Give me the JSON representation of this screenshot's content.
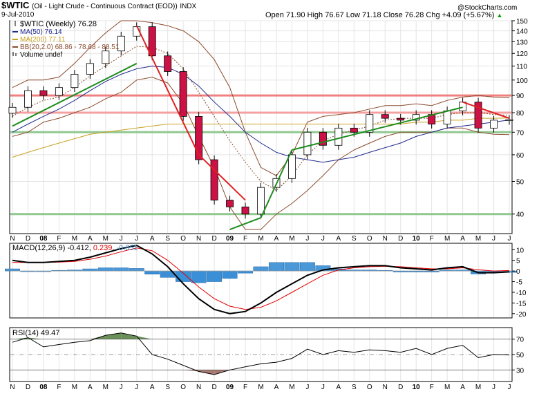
{
  "header": {
    "symbol": "$WTIC",
    "description": "(Oil - Light Crude - Continuous Contract (EOD))",
    "exchange": "INDX",
    "date": "9-Jul-2010",
    "watermark": "@StockCharts.com",
    "quote": "Open 71.90  High 76.67  Low 71.18  Close 76.28  Chg +4.09 (+5.67%)",
    "up_symbol": "▲"
  },
  "price_panel": {
    "legend": [
      {
        "text": "$WTIC (Weekly) 76.28",
        "color": "#000000",
        "swatch": "ohlc"
      },
      {
        "text": "MA(50) 76.14",
        "color": "#1f2a8c",
        "swatch": "line"
      },
      {
        "text": "MA(200) 77.11",
        "color": "#c8a020",
        "swatch": "line"
      },
      {
        "text": "BB(20,2.0) 68.86 - 78.68 - 88.51",
        "color": "#8b4a2b",
        "swatch": "line"
      },
      {
        "text": "Volume undef",
        "color": "#000000",
        "swatch": "bars"
      }
    ],
    "y_ticks": [
      40,
      50,
      60,
      70,
      80,
      90,
      100,
      110,
      120,
      130,
      140,
      150
    ],
    "scale": "log"
  },
  "macd_panel": {
    "label": "MACD(12,26,9)",
    "macd_value": "-0.412",
    "signal_value": "0.239",
    "hist_value": "-0.651",
    "y_ticks": [
      10,
      5,
      0,
      -5,
      -10,
      -15,
      -20
    ],
    "colors": {
      "macd": "#000000",
      "signal": "#e00000",
      "hist": "#3a8fd6"
    }
  },
  "rsi_panel": {
    "label": "RSI(14) 49.47",
    "y_ticks": [
      70,
      50,
      30
    ],
    "thresholds": [
      70,
      30
    ]
  },
  "x_axis": {
    "labels": [
      "N",
      "D",
      "08",
      "F",
      "M",
      "A",
      "M",
      "J",
      "J",
      "A",
      "S",
      "O",
      "N",
      "D",
      "09",
      "F",
      "M",
      "A",
      "M",
      "J",
      "J",
      "A",
      "S",
      "O",
      "N",
      "D",
      "10",
      "F",
      "M",
      "A",
      "M",
      "J",
      "J"
    ],
    "bold_labels": [
      "08",
      "09",
      "10"
    ]
  },
  "chart_data": [
    {
      "type": "ohlc",
      "title": "$WTIC (Weekly)",
      "period": "Weekly",
      "scale": "log",
      "ylim": [
        35,
        150
      ],
      "x_months": [
        "2007-11",
        "2007-12",
        "2008-01",
        "2008-02",
        "2008-03",
        "2008-04",
        "2008-05",
        "2008-06",
        "2008-07",
        "2008-08",
        "2008-09",
        "2008-10",
        "2008-11",
        "2008-12",
        "2009-01",
        "2009-02",
        "2009-03",
        "2009-04",
        "2009-05",
        "2009-06",
        "2009-07",
        "2009-08",
        "2009-09",
        "2009-10",
        "2009-11",
        "2009-12",
        "2010-01",
        "2010-02",
        "2010-03",
        "2010-04",
        "2010-05",
        "2010-06",
        "2010-07"
      ],
      "series": [
        {
          "name": "$WTIC",
          "close": [
            83,
            93,
            90,
            95,
            104,
            112,
            122,
            135,
            144,
            118,
            106,
            78,
            58,
            44,
            42,
            40,
            48,
            51,
            60,
            70,
            64,
            72,
            70,
            79,
            77,
            76,
            79,
            74,
            81,
            86,
            72,
            76,
            76.28
          ]
        },
        {
          "name": "MA(50)",
          "values": [
            70,
            74,
            78,
            82,
            87,
            93,
            99,
            104,
            108,
            110,
            109,
            104,
            96,
            86,
            78,
            70,
            65,
            61,
            59,
            58,
            57,
            58,
            59,
            61,
            63,
            65,
            68,
            70,
            72,
            73,
            74,
            75,
            76.14
          ]
        },
        {
          "name": "MA(200)",
          "values": [
            59,
            61,
            63,
            65,
            67,
            69,
            70,
            71,
            72,
            73,
            74,
            74,
            74,
            74,
            74,
            74,
            74,
            74,
            74,
            74,
            74,
            74,
            74,
            74,
            74,
            74,
            75,
            75,
            76,
            76,
            77,
            77,
            77.11
          ]
        },
        {
          "name": "BB(20,2.0)",
          "upper": [
            95,
            100,
            100,
            102,
            112,
            125,
            138,
            150,
            150,
            148,
            145,
            140,
            130,
            115,
            95,
            70,
            55,
            52,
            60,
            75,
            78,
            79,
            80,
            82,
            84,
            84,
            85,
            84,
            87,
            89,
            90,
            89,
            88.51
          ],
          "middle": [
            78,
            83,
            87,
            89,
            95,
            103,
            110,
            118,
            126,
            125,
            120,
            108,
            92,
            78,
            66,
            57,
            50,
            47,
            52,
            60,
            66,
            69,
            71,
            73,
            76,
            77,
            77,
            77,
            79,
            80,
            80,
            79,
            78.68
          ],
          "lower": [
            68,
            70,
            75,
            77,
            80,
            83,
            88,
            92,
            100,
            102,
            98,
            85,
            68,
            55,
            42,
            36,
            36,
            40,
            43,
            47,
            52,
            58,
            62,
            65,
            68,
            70,
            70,
            70,
            72,
            72,
            70,
            69,
            68.86
          ]
        }
      ],
      "annotations": [
        {
          "kind": "horizontal_line",
          "value": 90,
          "color": "#f08080"
        },
        {
          "kind": "horizontal_line",
          "value": 80,
          "color": "#f4a0a0"
        },
        {
          "kind": "horizontal_line",
          "value": 70,
          "color": "#90c890"
        },
        {
          "kind": "horizontal_line",
          "value": 40,
          "color": "#90c890"
        }
      ]
    },
    {
      "type": "line",
      "title": "MACD(12,26,9)",
      "ylim": [
        -22,
        13
      ],
      "series": [
        {
          "name": "MACD",
          "values": [
            5,
            4,
            4,
            4.5,
            5,
            6.5,
            8.5,
            10.5,
            12,
            8,
            2,
            -6,
            -13,
            -18,
            -20,
            -19,
            -15,
            -10,
            -6,
            -2,
            0.5,
            1.5,
            2,
            2.5,
            2.5,
            1.5,
            1,
            0.5,
            1.5,
            2,
            -0.8,
            -0.8,
            -0.412
          ]
        },
        {
          "name": "Signal",
          "values": [
            4,
            4,
            4,
            4.2,
            4.5,
            5.5,
            7,
            9,
            10.8,
            9.5,
            5,
            -1,
            -7.5,
            -13,
            -16.5,
            -18,
            -17,
            -14,
            -10,
            -6,
            -2,
            0.5,
            1.5,
            2,
            2.2,
            2,
            1.5,
            1,
            1,
            1.5,
            0.6,
            0,
            0.239
          ]
        },
        {
          "name": "Histogram",
          "values": [
            1,
            0,
            0,
            0.3,
            0.5,
            1,
            1.5,
            1.5,
            1.2,
            -1.5,
            -3,
            -5,
            -5.5,
            -5,
            -3.5,
            -1,
            2,
            4,
            4,
            4,
            2.5,
            1,
            0.5,
            0.5,
            0.3,
            -0.5,
            -0.5,
            -0.5,
            0.5,
            0.5,
            -1.4,
            -0.8,
            -0.651
          ]
        }
      ]
    },
    {
      "type": "line",
      "title": "RSI(14)",
      "ylim": [
        15,
        85
      ],
      "series": [
        {
          "name": "RSI(14)",
          "values": [
            66,
            72,
            60,
            63,
            66,
            68,
            75,
            78,
            74,
            50,
            44,
            36,
            28,
            24,
            30,
            34,
            38,
            40,
            45,
            57,
            50,
            55,
            53,
            56,
            55,
            53,
            58,
            50,
            58,
            62,
            46,
            50,
            49.47
          ]
        }
      ]
    }
  ]
}
